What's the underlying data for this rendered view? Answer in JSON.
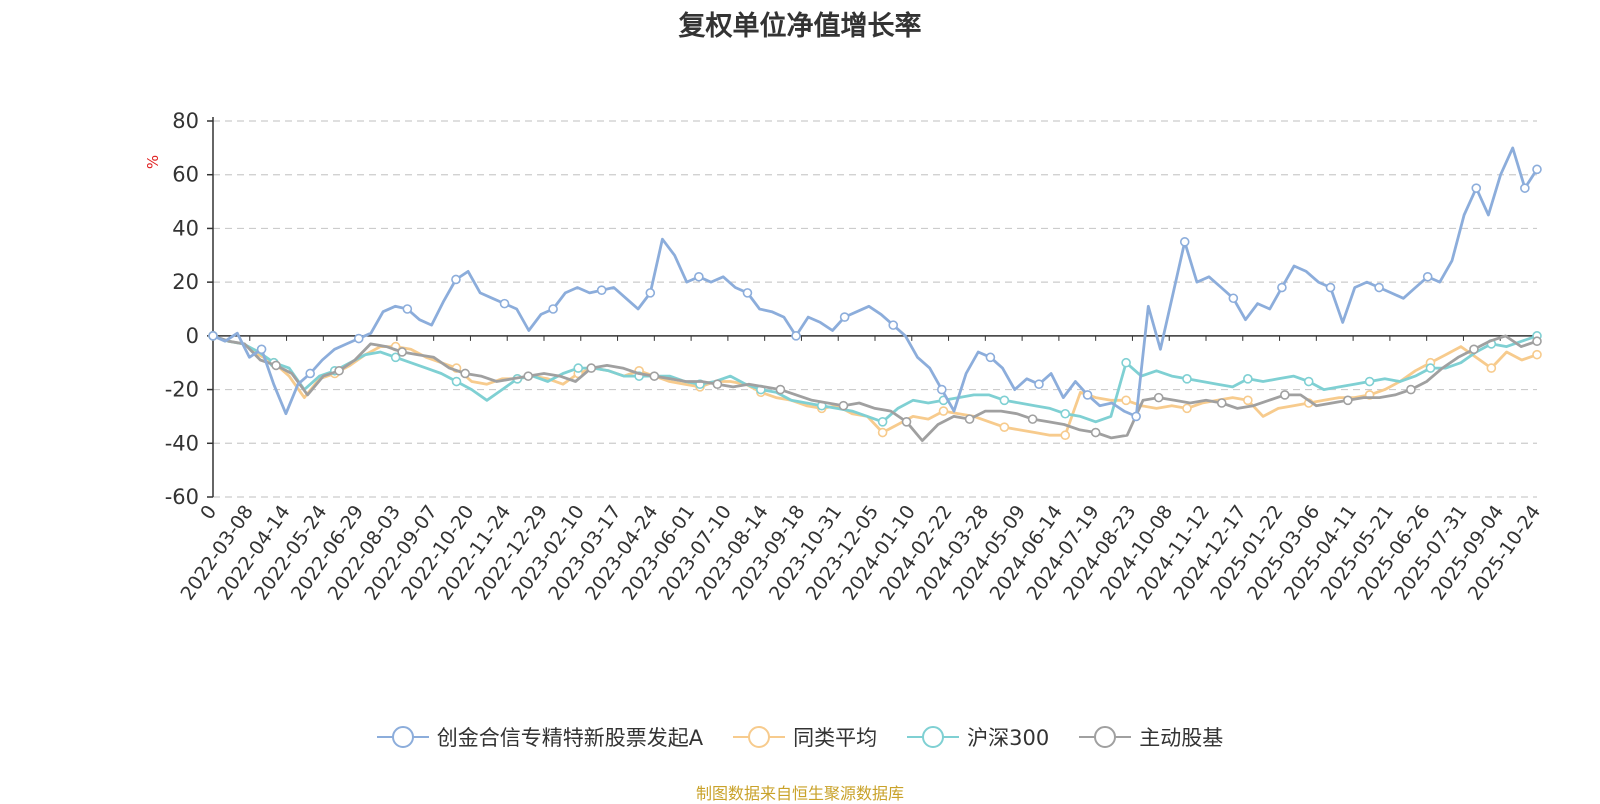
{
  "chart_data": {
    "type": "line",
    "title": "复权单位净值增长率",
    "ylabel": "%",
    "ylim": [
      -60,
      80
    ],
    "yticks": [
      80,
      60,
      40,
      20,
      0,
      -20,
      -40,
      -60
    ],
    "grid": true,
    "legend_position": "bottom",
    "x_tick_labels": [
      "0",
      "2022-03-08",
      "2022-04-14",
      "2022-05-24",
      "2022-06-29",
      "2022-08-03",
      "2022-09-07",
      "2022-10-20",
      "2022-11-24",
      "2022-12-29",
      "2023-02-10",
      "2023-03-17",
      "2023-04-24",
      "2023-06-01",
      "2023-07-10",
      "2023-08-14",
      "2023-09-18",
      "2023-10-31",
      "2023-12-05",
      "2024-01-10",
      "2024-02-22",
      "2024-03-28",
      "2024-05-09",
      "2024-06-14",
      "2024-07-19",
      "2024-08-23",
      "2024-10-08",
      "2024-11-12",
      "2024-12-17",
      "2025-01-22",
      "2025-03-06",
      "2025-04-11",
      "2025-05-21",
      "2025-06-26",
      "2025-07-31",
      "2025-09-04",
      "2025-10-24"
    ],
    "series": [
      {
        "name": "创金合信专精特新股票发起A",
        "color": "#8caddb",
        "values": [
          0,
          -2,
          1,
          -8,
          -5,
          -18,
          -29,
          -18,
          -14,
          -9,
          -5,
          -3,
          -1,
          1,
          9,
          11,
          10,
          6,
          4,
          13,
          21,
          24,
          16,
          14,
          12,
          10,
          2,
          8,
          10,
          16,
          18,
          16,
          17,
          18,
          14,
          10,
          16,
          36,
          30,
          20,
          22,
          20,
          22,
          18,
          16,
          10,
          9,
          7,
          0,
          7,
          5,
          2,
          7,
          9,
          11,
          8,
          4,
          0,
          -8,
          -12,
          -20,
          -28,
          -14,
          -6,
          -8,
          -12,
          -20,
          -16,
          -18,
          -14,
          -23,
          -17,
          -22,
          -26,
          -25,
          -28,
          -30,
          11,
          -5,
          15,
          35,
          20,
          22,
          18,
          14,
          6,
          12,
          10,
          18,
          26,
          24,
          20,
          18,
          5,
          18,
          20,
          18,
          16,
          14,
          18,
          22,
          20,
          28,
          45,
          55,
          45,
          60,
          70,
          55,
          62
        ]
      },
      {
        "name": "同类平均",
        "color": "#f7cb8d",
        "values": [
          0,
          -2,
          -3,
          -7,
          -10,
          -15,
          -23,
          -16,
          -14,
          -11,
          -7,
          -4,
          -4,
          -5,
          -8,
          -10,
          -12,
          -17,
          -18,
          -16,
          -16,
          -15,
          -16,
          -18,
          -14,
          -12,
          -13,
          -15,
          -13,
          -15,
          -17,
          -18,
          -19,
          -17,
          -17,
          -18,
          -21,
          -23,
          -24,
          -26,
          -27,
          -26,
          -29,
          -30,
          -36,
          -33,
          -30,
          -31,
          -28,
          -29,
          -30,
          -32,
          -34,
          -35,
          -36,
          -37,
          -37,
          -21,
          -23,
          -24,
          -24,
          -26,
          -27,
          -26,
          -27,
          -25,
          -24,
          -23,
          -24,
          -30,
          -27,
          -26,
          -25,
          -24,
          -23,
          -23,
          -22,
          -20,
          -17,
          -13,
          -10,
          -7,
          -4,
          -8,
          -12,
          -6,
          -9,
          -7
        ]
      },
      {
        "name": "沪深300",
        "color": "#7fd0d3",
        "values": [
          0,
          -2,
          -3,
          -6,
          -10,
          -12,
          -20,
          -15,
          -13,
          -10,
          -7,
          -6,
          -8,
          -10,
          -12,
          -14,
          -17,
          -20,
          -24,
          -20,
          -16,
          -15,
          -17,
          -14,
          -12,
          -12,
          -13,
          -15,
          -15,
          -15,
          -15,
          -17,
          -18,
          -17,
          -15,
          -18,
          -20,
          -21,
          -24,
          -25,
          -26,
          -27,
          -28,
          -30,
          -32,
          -27,
          -24,
          -25,
          -24,
          -23,
          -22,
          -22,
          -24,
          -25,
          -26,
          -27,
          -29,
          -30,
          -32,
          -30,
          -10,
          -15,
          -13,
          -15,
          -16,
          -17,
          -18,
          -19,
          -16,
          -17,
          -16,
          -15,
          -17,
          -20,
          -19,
          -18,
          -17,
          -16,
          -17,
          -15,
          -12,
          -12,
          -10,
          -6,
          -3,
          -4,
          -2,
          0
        ]
      },
      {
        "name": "主动股基",
        "color": "#a0a0a0",
        "values": [
          0,
          -2,
          -3,
          -9,
          -11,
          -14,
          -22,
          -15,
          -13,
          -9,
          -3,
          -4,
          -6,
          -7,
          -8,
          -12,
          -14,
          -15,
          -17,
          -16,
          -15,
          -14,
          -15,
          -17,
          -12,
          -11,
          -12,
          -14,
          -15,
          -16,
          -17,
          -17,
          -18,
          -19,
          -18,
          -19,
          -20,
          -22,
          -24,
          -25,
          -26,
          -25,
          -27,
          -28,
          -32,
          -39,
          -33,
          -30,
          -31,
          -28,
          -28,
          -29,
          -31,
          -32,
          -33,
          -35,
          -36,
          -38,
          -37,
          -24,
          -23,
          -24,
          -25,
          -24,
          -25,
          -27,
          -26,
          -24,
          -22,
          -22,
          -26,
          -25,
          -24,
          -23,
          -23,
          -22,
          -20,
          -17,
          -12,
          -8,
          -5,
          -2,
          0,
          -4,
          -2
        ]
      }
    ]
  },
  "source_text": "制图数据来自恒生聚源数据库"
}
